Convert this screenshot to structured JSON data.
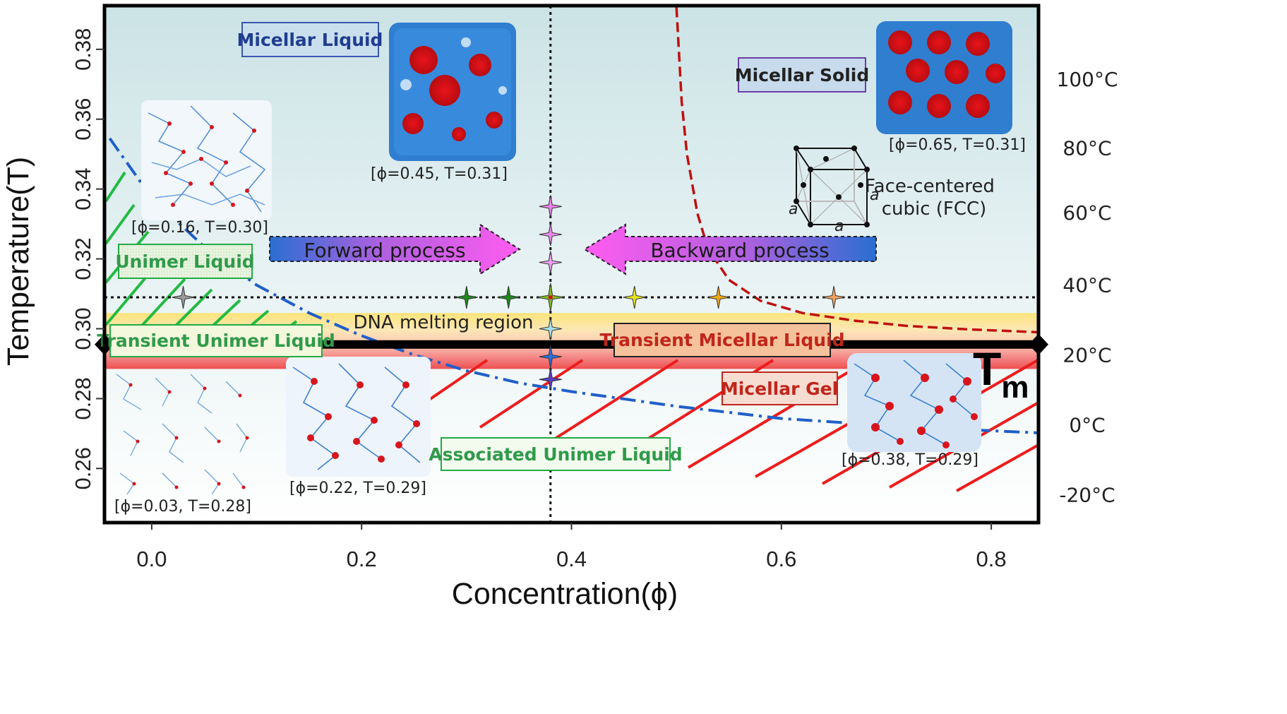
{
  "chart_data": {
    "type": "scatter",
    "xlabel": "Concentration(ϕ)",
    "ylabel": "Temperature(T)",
    "xlim": [
      -0.045,
      0.845
    ],
    "ylim": [
      0.2445,
      0.3925
    ],
    "x_ticks": [
      0.0,
      0.2,
      0.4,
      0.6,
      0.8
    ],
    "x_tick_labels": [
      "0.0",
      "0.2",
      "0.4",
      "0.6",
      "0.8"
    ],
    "y_ticks": [
      0.26,
      0.28,
      0.3,
      0.32,
      0.34,
      0.36,
      0.38
    ],
    "y_tick_labels": [
      "0.26",
      "0.28",
      "0.30",
      "0.32",
      "0.34",
      "0.36",
      "0.38"
    ],
    "secondary_y_ticks": [
      {
        "label": "100°C",
        "T": 0.3715
      },
      {
        "label": "80°C",
        "T": 0.3518
      },
      {
        "label": "60°C",
        "T": 0.3333
      },
      {
        "label": "40°C",
        "T": 0.3125
      },
      {
        "label": "20°C",
        "T": 0.2925
      },
      {
        "label": "0°C",
        "T": 0.2725
      },
      {
        "label": "-20°C",
        "T": 0.2525
      }
    ],
    "Tm_label": "T",
    "Tm_subscript": "m",
    "Tm": 0.2955,
    "reference_T": 0.309,
    "reference_phi": 0.38,
    "dna_melting_band": [
      0.2885,
      0.3045
    ],
    "dna_melting_label": "DNA melting region",
    "series": [
      {
        "color": "#1f5fc9",
        "style": "dash-dot",
        "x": [
          -0.04,
          0.0,
          0.05,
          0.1,
          0.15,
          0.2,
          0.25,
          0.3,
          0.35,
          0.4,
          0.5,
          0.6,
          0.7,
          0.8,
          0.845
        ],
        "y": [
          0.3545,
          0.3375,
          0.3235,
          0.3125,
          0.3045,
          0.298,
          0.2925,
          0.288,
          0.2845,
          0.282,
          0.2778,
          0.2743,
          0.2723,
          0.2708,
          0.2702
        ]
      },
      {
        "color": "#c01010",
        "style": "dashed",
        "x": [
          0.5,
          0.505,
          0.51,
          0.52,
          0.53,
          0.55,
          0.58,
          0.62,
          0.67,
          0.72,
          0.78,
          0.845
        ],
        "y": [
          0.392,
          0.365,
          0.35,
          0.333,
          0.323,
          0.314,
          0.308,
          0.3045,
          0.3023,
          0.3008,
          0.2998,
          0.299
        ]
      }
    ],
    "markers": [
      {
        "x": 0.03,
        "y": 0.309,
        "color": "#9a9a9a"
      },
      {
        "x": 0.3,
        "y": 0.309,
        "color": "#1e8a1e"
      },
      {
        "x": 0.34,
        "y": 0.309,
        "color": "#1e8a1e"
      },
      {
        "x": 0.38,
        "y": 0.309,
        "color": "#7bbd20"
      },
      {
        "x": 0.46,
        "y": 0.309,
        "color": "#e6e21c"
      },
      {
        "x": 0.54,
        "y": 0.309,
        "color": "#f0a818"
      },
      {
        "x": 0.65,
        "y": 0.309,
        "color": "#f0a060"
      },
      {
        "x": 0.38,
        "y": 0.335,
        "color": "#ee82ee"
      },
      {
        "x": 0.38,
        "y": 0.327,
        "color": "#ee8aee"
      },
      {
        "x": 0.38,
        "y": 0.319,
        "color": "#f0a0f0"
      },
      {
        "x": 0.38,
        "y": 0.3,
        "color": "#a8e0ea"
      },
      {
        "x": 0.38,
        "y": 0.292,
        "color": "#2f6ee0"
      },
      {
        "x": 0.38,
        "y": 0.2855,
        "color": "#5a3cc8"
      }
    ],
    "region_labels": [
      {
        "text": "Micellar Liquid",
        "color": "#203d8f",
        "bg": "#c9dfee",
        "border": "#3b55b0"
      },
      {
        "text": "Micellar Solid",
        "color": "#222222",
        "bg": "#c7dbec",
        "border": "#6a3ea6"
      },
      {
        "text": "Unimer Liquid",
        "color": "#2f9a4a",
        "bg": "#eaf4d8",
        "border": "#22aa44"
      },
      {
        "text": "Transient Unimer Liquid",
        "color": "#2f9a4a",
        "bg": "#f3f8dc",
        "border": "#22aa44"
      },
      {
        "text": "Transient Micellar Liquid",
        "color": "#c0261b",
        "bg": "#f6c29c",
        "border": "#222222"
      },
      {
        "text": "Micellar Gel",
        "color": "#c0261b",
        "bg": "#f7dcd2",
        "border": "#c0261b"
      },
      {
        "text": "Associated Unimer Liquid",
        "color": "#2f9a4a",
        "bg": "#f3faee",
        "border": "#22aa44"
      }
    ],
    "process_arrows": [
      {
        "text": "Forward process",
        "direction": "right"
      },
      {
        "text": "Backward process",
        "direction": "left"
      }
    ],
    "snapshot_captions": [
      "[ϕ=0.45, T=0.31]",
      "[ϕ=0.65, T=0.31]",
      "[ϕ=0.16, T=0.30]",
      "[ϕ=0.03, T=0.28]",
      "[ϕ=0.22, T=0.29]",
      "[ϕ=0.38, T=0.29]"
    ],
    "fcc_label": [
      "Face-centered",
      "cubic (FCC)"
    ],
    "fcc_edge_label": "a",
    "legend": "none",
    "grid": false
  }
}
